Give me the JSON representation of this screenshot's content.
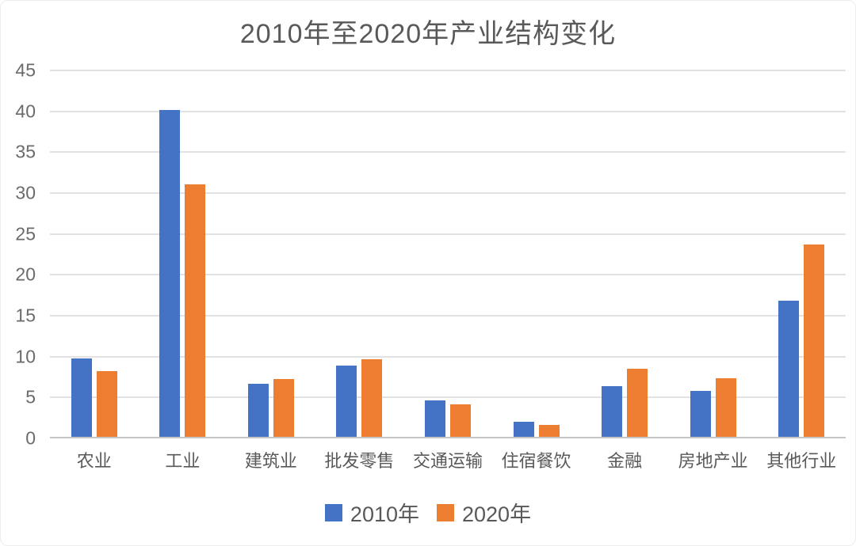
{
  "chart_data": {
    "type": "bar",
    "title": "2010年至2020年产业结构变化",
    "categories": [
      "农业",
      "工业",
      "建筑业",
      "批发零售",
      "交通运输",
      "住宿餐饮",
      "金融",
      "房地产业",
      "其他行业"
    ],
    "series": [
      {
        "name": "2010年",
        "color": "#4472C4",
        "values": [
          9.6,
          40.0,
          6.5,
          8.7,
          4.5,
          1.8,
          6.2,
          5.6,
          16.6
        ]
      },
      {
        "name": "2020年",
        "color": "#ED7D31",
        "values": [
          8.0,
          30.9,
          7.1,
          9.5,
          4.0,
          1.5,
          8.3,
          7.2,
          23.5
        ]
      }
    ],
    "ylim": [
      0,
      45
    ],
    "ytick_step": 5,
    "ytick_labels": [
      "0",
      "5",
      "10",
      "15",
      "20",
      "25",
      "30",
      "35",
      "40",
      "45"
    ],
    "grid": true,
    "legend_position": "bottom",
    "colors": {
      "gridline": "#e2e2e2",
      "axis_line": "#c6c6c6",
      "text": "#595959"
    }
  }
}
